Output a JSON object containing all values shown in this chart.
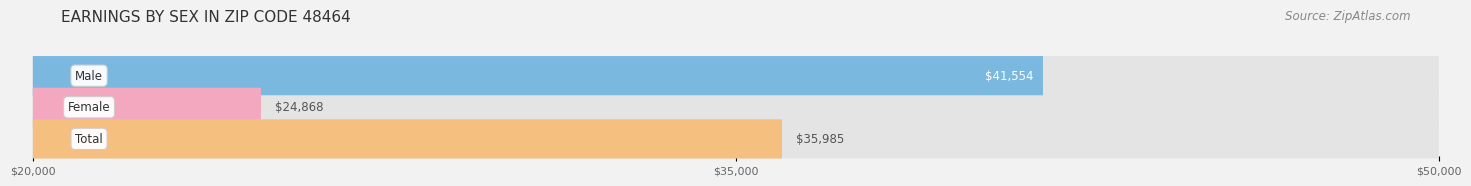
{
  "title": "EARNINGS BY SEX IN ZIP CODE 48464",
  "source": "Source: ZipAtlas.com",
  "categories": [
    "Male",
    "Female",
    "Total"
  ],
  "values": [
    41554,
    24868,
    35985
  ],
  "bar_colors": [
    "#7ab8e0",
    "#f4a8c0",
    "#f5bf80"
  ],
  "bar_label_colors": [
    "white",
    "#666666",
    "#666666"
  ],
  "bar_labels": [
    "$41,554",
    "$24,868",
    "$35,985"
  ],
  "xmin": 20000,
  "xmax": 50000,
  "xticks": [
    20000,
    35000,
    50000
  ],
  "xtick_labels": [
    "$20,000",
    "$35,000",
    "$50,000"
  ],
  "background_color": "#f2f2f2",
  "bar_background_color": "#e4e4e4",
  "title_fontsize": 11,
  "source_fontsize": 8.5,
  "bar_height": 0.62,
  "label_fontsize": 8.5,
  "category_fontsize": 8.5
}
